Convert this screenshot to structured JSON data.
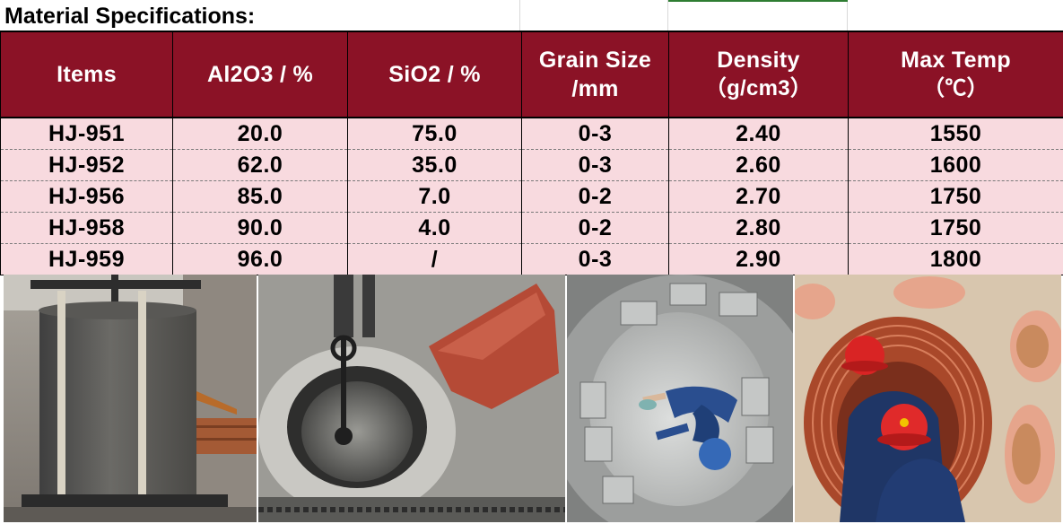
{
  "sheet": {
    "title": "Material Specifications:"
  },
  "table": {
    "headers": [
      {
        "line1": "Items",
        "line2": ""
      },
      {
        "line1": "Al2O3 / %",
        "line2": ""
      },
      {
        "line1": "SiO2 / %",
        "line2": ""
      },
      {
        "line1": "Grain Size",
        "line2": "/mm"
      },
      {
        "line1": "Density",
        "line2": "（g/cm3）"
      },
      {
        "line1": "Max Temp",
        "line2": "（℃）"
      }
    ],
    "rows": [
      [
        "HJ-951",
        "20.0",
        "75.0",
        "0-3",
        "2.40",
        "1550"
      ],
      [
        "HJ-952",
        "62.0",
        "35.0",
        "0-3",
        "2.60",
        "1600"
      ],
      [
        "HJ-956",
        "85.0",
        "7.0",
        "0-2",
        "2.70",
        "1750"
      ],
      [
        "HJ-958",
        "90.0",
        "4.0",
        "0-2",
        "2.80",
        "1750"
      ],
      [
        "HJ-959",
        "96.0",
        "/",
        "0-3",
        "2.90",
        "1800"
      ]
    ]
  },
  "colors": {
    "header_bg": "#8b1226",
    "header_text": "#ffffff",
    "row_bg": "#f8dadf",
    "accent_green": "#2e7d32"
  },
  "photos": [
    {
      "icon": "lined-induction-crucible-photo"
    },
    {
      "icon": "crucible-lining-with-lifting-chain-photo"
    },
    {
      "icon": "worker-installing-lining-inside-furnace-photo"
    },
    {
      "icon": "workers-in-red-helmets-building-brick-lining-photo"
    }
  ]
}
